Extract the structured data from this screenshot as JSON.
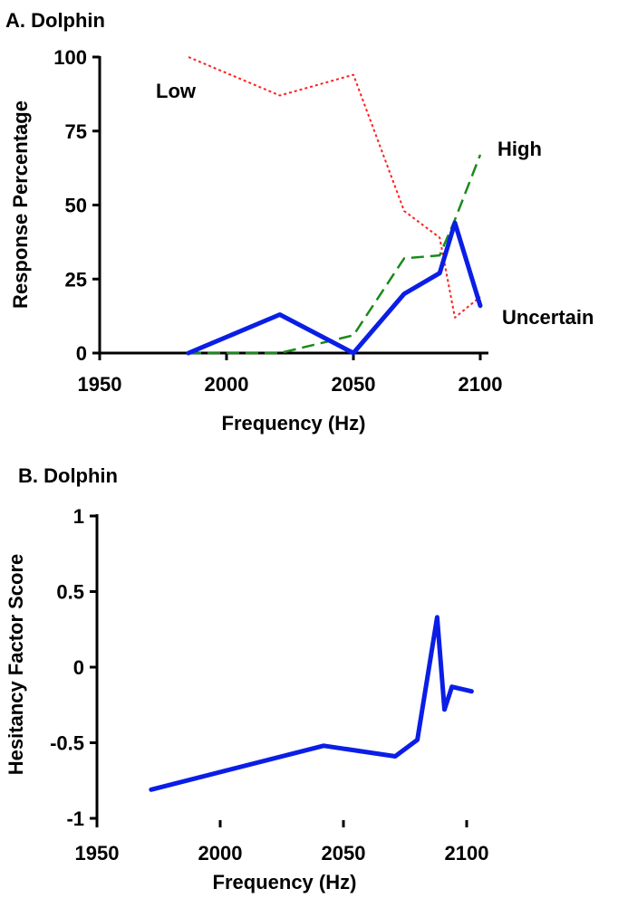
{
  "chart_data": [
    {
      "type": "line",
      "title": "A. Dolphin",
      "xlabel": "Frequency (Hz)",
      "ylabel": "Response Percentage",
      "xlim": [
        1950,
        2100
      ],
      "ylim": [
        0,
        100
      ],
      "xticks": [
        "1950",
        "2000",
        "2050",
        "2100"
      ],
      "yticks": [
        "0",
        "25",
        "50",
        "75",
        "100"
      ],
      "grid": false,
      "series": [
        {
          "name": "Low",
          "color": "#ff2020",
          "style": "dotted",
          "x": [
            1985,
            2021,
            2050,
            2070,
            2084,
            2090,
            2100
          ],
          "y": [
            100,
            87,
            94,
            48,
            39,
            12,
            19
          ]
        },
        {
          "name": "High",
          "color": "#1a8a1a",
          "style": "dashed",
          "x": [
            1985,
            2021,
            2050,
            2070,
            2084,
            2090,
            2100
          ],
          "y": [
            0,
            0,
            6,
            32,
            33,
            45,
            67
          ]
        },
        {
          "name": "Uncertain",
          "color": "#0a1ee6",
          "style": "solid",
          "x": [
            1985,
            2021,
            2050,
            2070,
            2084,
            2090,
            2100
          ],
          "y": [
            0,
            13,
            0,
            20,
            27,
            44,
            16
          ]
        }
      ]
    },
    {
      "type": "line",
      "title": "B. Dolphin",
      "xlabel": "Frequency (Hz)",
      "ylabel": "Hesitancy Factor Score",
      "xlim": [
        1950,
        2100
      ],
      "ylim": [
        -1,
        1
      ],
      "xticks": [
        "1950",
        "2000",
        "2050",
        "2100"
      ],
      "yticks": [
        "-1",
        "-0.5",
        "0",
        "0.5",
        "1"
      ],
      "grid": false,
      "series": [
        {
          "color": "#0a1ee6",
          "style": "solid",
          "x": [
            1972,
            2042,
            2071,
            2080,
            2088,
            2091,
            2094,
            2102
          ],
          "y": [
            -0.81,
            -0.52,
            -0.59,
            -0.48,
            0.33,
            -0.28,
            -0.13,
            -0.16
          ]
        }
      ]
    }
  ]
}
